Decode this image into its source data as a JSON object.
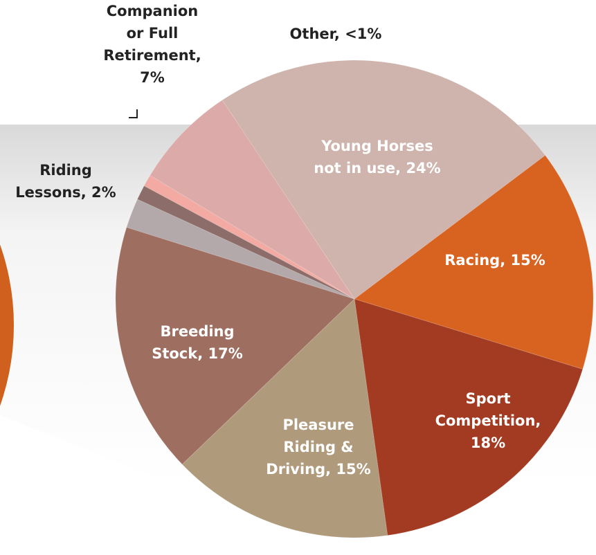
{
  "chart_data": {
    "type": "pie",
    "categories": [
      "Racing, 15%",
      "Sport Competition, 18%",
      "Pleasure Riding & Driving, 15%",
      "Breeding Stock, 17%",
      "Riding Lessons, 2%",
      null,
      "Other, <1%",
      "Companion or Full Retirement, 7%",
      "Young Horses not in use, 24%"
    ],
    "values": [
      15,
      18,
      15,
      17,
      2,
      1,
      0.8,
      7,
      24
    ],
    "colors": [
      "#d8621f",
      "#a33b22",
      "#b09a7c",
      "#9e6e60",
      "#b3a9aa",
      "#8c6d69",
      "#f2aaa2",
      "#dcaaa8",
      "#cfb3ad"
    ]
  }
}
